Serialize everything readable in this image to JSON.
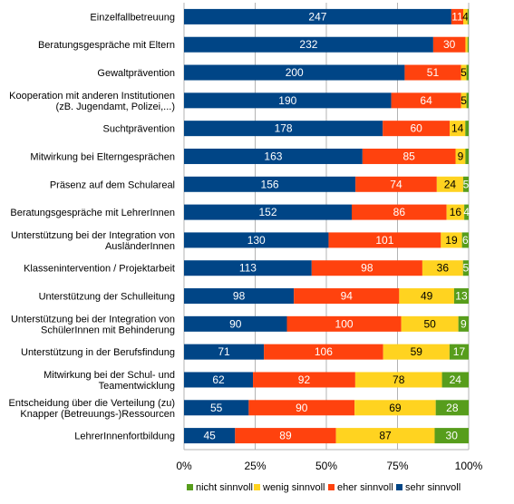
{
  "chart_data": {
    "type": "bar",
    "orientation": "horizontal",
    "stacked": "percent",
    "categories": [
      "Einzelfallbetreuung",
      "Beratungsgespräche mit Eltern",
      "Gewaltprävention",
      "Kooperation mit anderen Institutionen\n(zB. Jugendamt, Polizei,...)",
      "Suchtprävention",
      "Mitwirkung bei Elterngesprächen",
      "Präsenz auf dem Schulareal",
      "Beratungsgespräche mit LehrerInnen",
      "Unterstützung bei der Integration von\nAusländerInnen",
      "Klassenintervention / Projektarbeit",
      "Unterstützung der Schulleitung",
      "Unterstützung bei der Integration von\nSchülerInnen mit Behinderung",
      "Unterstützung in der Berufsfindung",
      "Mitwirkung bei der Schul- und\nTeamentwicklung",
      "Entscheidung über die Verteilung (zu)\nKnapper (Betreuungs-)Ressourcen",
      "LehrerInnenfortbildung"
    ],
    "series": [
      {
        "name": "sehr sinnvoll",
        "color": "#004586",
        "values": [
          247,
          232,
          200,
          190,
          178,
          163,
          156,
          152,
          130,
          113,
          98,
          90,
          71,
          62,
          55,
          45
        ]
      },
      {
        "name": "eher sinnvoll",
        "color": "#ff420e",
        "values": [
          11,
          30,
          51,
          64,
          60,
          85,
          74,
          86,
          101,
          98,
          94,
          100,
          106,
          92,
          90,
          89
        ]
      },
      {
        "name": "wenig sinnvoll",
        "color": "#ffd320",
        "values": [
          4,
          2,
          5,
          5,
          14,
          9,
          24,
          16,
          19,
          36,
          49,
          50,
          59,
          78,
          69,
          87
        ]
      },
      {
        "name": "nicht sinnvoll",
        "color": "#579d1c",
        "values": [
          1,
          1,
          2,
          2,
          3,
          3,
          5,
          4,
          6,
          5,
          13,
          9,
          17,
          24,
          28,
          30
        ]
      }
    ],
    "bar_labels": [
      [
        "247",
        "11",
        "4",
        ""
      ],
      [
        "232",
        "30",
        "",
        ""
      ],
      [
        "200",
        "51",
        "5",
        ""
      ],
      [
        "190",
        "64",
        "5",
        ""
      ],
      [
        "178",
        "60",
        "14",
        ""
      ],
      [
        "163",
        "85",
        "9",
        ""
      ],
      [
        "156",
        "74",
        "24",
        "5"
      ],
      [
        "152",
        "86",
        "16",
        "4"
      ],
      [
        "130",
        "101",
        "19",
        "6"
      ],
      [
        "113",
        "98",
        "36",
        "5"
      ],
      [
        "98",
        "94",
        "49",
        "13"
      ],
      [
        "90",
        "100",
        "50",
        "9"
      ],
      [
        "71",
        "106",
        "59",
        "17"
      ],
      [
        "62",
        "92",
        "78",
        "24"
      ],
      [
        "55",
        "90",
        "69",
        "28"
      ],
      [
        "45",
        "89",
        "87",
        "30"
      ]
    ],
    "label_colors": {
      "sehr sinnvoll": "#ffffff",
      "eher sinnvoll": "#ffffff",
      "wenig sinnvoll": "#000000",
      "nicht sinnvoll": "#ffffff"
    },
    "xticks": [
      "0%",
      "25%",
      "50%",
      "75%",
      "100%"
    ],
    "xlim": [
      0,
      100
    ],
    "legend": {
      "position": "bottom",
      "entries": [
        "nicht sinnvoll",
        "wenig sinnvoll",
        "eher sinnvoll",
        "sehr sinnvoll"
      ]
    },
    "grid": true
  }
}
